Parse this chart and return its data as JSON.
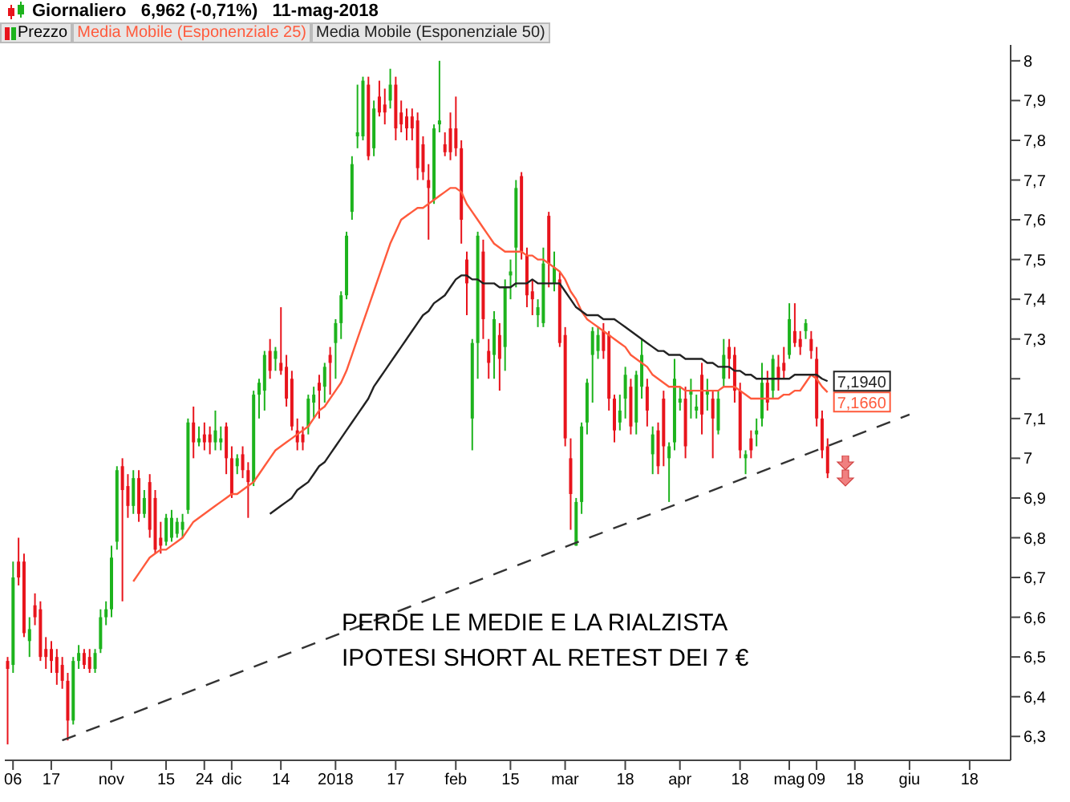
{
  "chart_data": {
    "type": "candlestick",
    "title": "Giornaliero   6,962 (-0,71%)   11-mag-2018",
    "categories": [
      null,
      "06",
      null,
      null,
      null,
      null,
      null,
      null,
      "17",
      null,
      null,
      null,
      null,
      null,
      null,
      null,
      null,
      null,
      null,
      "nov",
      null,
      null,
      null,
      null,
      null,
      null,
      null,
      null,
      null,
      "15",
      null,
      null,
      null,
      null,
      null,
      null,
      "24",
      null,
      null,
      null,
      null,
      "dic",
      null,
      null,
      null,
      null,
      null,
      null,
      null,
      null,
      "14",
      null,
      null,
      null,
      null,
      null,
      null,
      null,
      null,
      null,
      "2018",
      null,
      null,
      null,
      null,
      null,
      null,
      null,
      null,
      null,
      null,
      "17",
      null,
      null,
      null,
      null,
      null,
      null,
      null,
      null,
      null,
      null,
      "feb",
      null,
      null,
      null,
      null,
      null,
      null,
      null,
      null,
      null,
      "15",
      null,
      null,
      null,
      null,
      null,
      null,
      null,
      null,
      null,
      "mar",
      null,
      null,
      null,
      null,
      null,
      null,
      null,
      null,
      null,
      null,
      "18",
      null,
      null,
      null,
      null,
      null,
      null,
      null,
      null,
      null,
      "apr",
      null,
      null,
      null,
      null,
      null,
      null,
      null,
      null,
      null,
      null,
      "18",
      null,
      null,
      null,
      null,
      null,
      null,
      null,
      null,
      "mag",
      null,
      null,
      null,
      null,
      "09",
      null,
      null,
      null,
      null,
      null,
      null,
      "18",
      null,
      null,
      null,
      null,
      null,
      null,
      null,
      null,
      null,
      "giu",
      null,
      null,
      null,
      null,
      null,
      null,
      null,
      null,
      null,
      null,
      "18",
      null,
      null,
      null,
      null,
      null,
      null,
      null
    ],
    "series": [
      {
        "name": "Prezzo",
        "type": "candlestick",
        "ohlc": [
          [
            6.49,
            6.5,
            6.28,
            6.47
          ],
          [
            6.48,
            6.74,
            6.46,
            6.7
          ],
          [
            6.74,
            6.8,
            6.68,
            6.7
          ],
          [
            6.74,
            6.76,
            6.55,
            6.56
          ],
          [
            6.54,
            6.6,
            6.5,
            6.57
          ],
          [
            6.63,
            6.66,
            6.58,
            6.6
          ],
          [
            6.62,
            6.64,
            6.49,
            6.5
          ],
          [
            6.52,
            6.55,
            6.47,
            6.5
          ],
          [
            6.52,
            6.54,
            6.46,
            6.49
          ],
          [
            6.5,
            6.52,
            6.43,
            6.46
          ],
          [
            6.48,
            6.5,
            6.42,
            6.44
          ],
          [
            6.44,
            6.46,
            6.29,
            6.34
          ],
          [
            6.34,
            6.5,
            6.33,
            6.49
          ],
          [
            6.49,
            6.53,
            6.47,
            6.51
          ],
          [
            6.51,
            6.52,
            6.47,
            6.48
          ],
          [
            6.5,
            6.52,
            6.46,
            6.47
          ],
          [
            6.47,
            6.52,
            6.46,
            6.51
          ],
          [
            6.52,
            6.62,
            6.51,
            6.6
          ],
          [
            6.6,
            6.64,
            6.58,
            6.62
          ],
          [
            6.62,
            6.78,
            6.6,
            6.75
          ],
          [
            6.79,
            6.98,
            6.77,
            6.97
          ],
          [
            6.98,
            7.0,
            6.64,
            6.92
          ],
          [
            6.93,
            6.96,
            6.85,
            6.88
          ],
          [
            6.88,
            6.97,
            6.86,
            6.95
          ],
          [
            6.95,
            6.97,
            6.84,
            6.86
          ],
          [
            6.86,
            6.92,
            6.85,
            6.9
          ],
          [
            6.94,
            6.96,
            6.8,
            6.82
          ],
          [
            6.9,
            6.92,
            6.76,
            6.77
          ],
          [
            6.8,
            6.84,
            6.76,
            6.78
          ],
          [
            6.79,
            6.86,
            6.78,
            6.85
          ],
          [
            6.8,
            6.87,
            6.79,
            6.85
          ],
          [
            6.81,
            6.85,
            6.8,
            6.84
          ],
          [
            6.82,
            6.86,
            6.8,
            6.84
          ],
          [
            6.87,
            7.1,
            6.86,
            7.09
          ],
          [
            7.09,
            7.13,
            7.0,
            7.04
          ],
          [
            7.04,
            7.08,
            7.03,
            7.05
          ],
          [
            7.06,
            7.09,
            7.02,
            7.04
          ],
          [
            7.06,
            7.08,
            7.01,
            7.04
          ],
          [
            7.04,
            7.12,
            7.02,
            7.07
          ],
          [
            7.04,
            7.08,
            7.02,
            7.05
          ],
          [
            7.08,
            7.09,
            6.96,
            7.0
          ],
          [
            7.0,
            7.03,
            6.9,
            6.91
          ],
          [
            6.98,
            7.01,
            6.96,
            7.0
          ],
          [
            7.01,
            7.03,
            6.95,
            6.97
          ],
          [
            6.97,
            6.99,
            6.85,
            6.94
          ],
          [
            6.94,
            7.17,
            6.93,
            7.16
          ],
          [
            7.16,
            7.2,
            7.1,
            7.19
          ],
          [
            7.17,
            7.27,
            7.12,
            7.26
          ],
          [
            7.27,
            7.3,
            7.2,
            7.22
          ],
          [
            7.25,
            7.28,
            7.22,
            7.27
          ],
          [
            7.24,
            7.38,
            7.21,
            7.22
          ],
          [
            7.23,
            7.26,
            7.13,
            7.15
          ],
          [
            7.2,
            7.22,
            7.07,
            7.08
          ],
          [
            7.07,
            7.1,
            7.02,
            7.04
          ],
          [
            7.06,
            7.08,
            7.02,
            7.04
          ],
          [
            7.08,
            7.16,
            7.06,
            7.15
          ],
          [
            7.14,
            7.18,
            7.1,
            7.16
          ],
          [
            7.19,
            7.21,
            7.1,
            7.17
          ],
          [
            7.18,
            7.24,
            7.14,
            7.23
          ],
          [
            7.26,
            7.28,
            7.16,
            7.24
          ],
          [
            7.29,
            7.35,
            7.2,
            7.34
          ],
          [
            7.34,
            7.42,
            7.3,
            7.41
          ],
          [
            7.41,
            7.57,
            7.4,
            7.56
          ],
          [
            7.62,
            7.76,
            7.6,
            7.74
          ],
          [
            7.81,
            7.94,
            7.78,
            7.82
          ],
          [
            7.81,
            7.96,
            7.8,
            7.95
          ],
          [
            7.94,
            7.96,
            7.75,
            7.76
          ],
          [
            7.78,
            7.9,
            7.76,
            7.88
          ],
          [
            7.91,
            7.95,
            7.86,
            7.87
          ],
          [
            7.89,
            7.93,
            7.84,
            7.87
          ],
          [
            7.9,
            7.98,
            7.88,
            7.94
          ],
          [
            7.94,
            7.96,
            7.8,
            7.83
          ],
          [
            7.87,
            7.9,
            7.82,
            7.84
          ],
          [
            7.86,
            7.88,
            7.8,
            7.83
          ],
          [
            7.86,
            7.88,
            7.8,
            7.83
          ],
          [
            7.85,
            7.87,
            7.7,
            7.73
          ],
          [
            7.79,
            7.81,
            7.7,
            7.72
          ],
          [
            7.7,
            7.74,
            7.55,
            7.68
          ],
          [
            7.65,
            7.84,
            7.64,
            7.83
          ],
          [
            7.84,
            8.0,
            7.82,
            7.85
          ],
          [
            7.79,
            7.82,
            7.76,
            7.77
          ],
          [
            7.83,
            7.87,
            7.75,
            7.77
          ],
          [
            7.83,
            7.91,
            7.76,
            7.78
          ],
          [
            7.78,
            7.8,
            7.54,
            7.6
          ],
          [
            7.5,
            7.52,
            7.36,
            7.44
          ],
          [
            7.1,
            7.3,
            7.02,
            7.29
          ],
          [
            7.29,
            7.57,
            7.2,
            7.56
          ],
          [
            7.52,
            7.55,
            7.3,
            7.35
          ],
          [
            7.27,
            7.3,
            7.2,
            7.24
          ],
          [
            7.26,
            7.37,
            7.2,
            7.35
          ],
          [
            7.31,
            7.34,
            7.17,
            7.25
          ],
          [
            7.28,
            7.45,
            7.22,
            7.43
          ],
          [
            7.46,
            7.5,
            7.4,
            7.47
          ],
          [
            7.53,
            7.7,
            7.43,
            7.68
          ],
          [
            7.71,
            7.72,
            7.5,
            7.52
          ],
          [
            7.51,
            7.53,
            7.38,
            7.41
          ],
          [
            7.42,
            7.45,
            7.36,
            7.4
          ],
          [
            7.36,
            7.4,
            7.33,
            7.38
          ],
          [
            7.34,
            7.53,
            7.33,
            7.49
          ],
          [
            7.61,
            7.62,
            7.43,
            7.49
          ],
          [
            7.44,
            7.52,
            7.42,
            7.48
          ],
          [
            7.45,
            7.47,
            7.28,
            7.29
          ],
          [
            7.31,
            7.33,
            7.03,
            7.05
          ],
          [
            7.0,
            7.05,
            6.82,
            6.91
          ],
          [
            6.78,
            6.9,
            6.78,
            6.89
          ],
          [
            6.89,
            7.09,
            6.86,
            7.08
          ],
          [
            7.09,
            7.2,
            7.06,
            7.19
          ],
          [
            7.26,
            7.33,
            7.14,
            7.32
          ],
          [
            7.27,
            7.33,
            7.25,
            7.31
          ],
          [
            7.32,
            7.34,
            7.25,
            7.27
          ],
          [
            7.31,
            7.32,
            7.12,
            7.15
          ],
          [
            7.15,
            7.16,
            7.04,
            7.07
          ],
          [
            7.09,
            7.16,
            7.07,
            7.12
          ],
          [
            7.15,
            7.23,
            7.1,
            7.21
          ],
          [
            7.18,
            7.2,
            7.06,
            7.08
          ],
          [
            7.09,
            7.22,
            7.06,
            7.21
          ],
          [
            7.18,
            7.3,
            7.15,
            7.26
          ],
          [
            7.18,
            7.2,
            7.08,
            7.12
          ],
          [
            7.01,
            7.08,
            6.96,
            7.06
          ],
          [
            7.07,
            7.09,
            6.96,
            6.98
          ],
          [
            7.15,
            7.17,
            6.98,
            7.03
          ],
          [
            7.0,
            7.04,
            6.89,
            7.03
          ],
          [
            7.04,
            7.25,
            7.02,
            7.2
          ],
          [
            7.14,
            7.18,
            7.12,
            7.15
          ],
          [
            7.15,
            7.18,
            7.0,
            7.03
          ],
          [
            7.16,
            7.2,
            7.1,
            7.17
          ],
          [
            7.12,
            7.16,
            7.1,
            7.13
          ],
          [
            7.21,
            7.24,
            7.06,
            7.11
          ],
          [
            7.16,
            7.2,
            7.12,
            7.17
          ],
          [
            7.15,
            7.17,
            7.0,
            7.1
          ],
          [
            7.07,
            7.17,
            7.06,
            7.15
          ],
          [
            7.2,
            7.3,
            7.18,
            7.26
          ],
          [
            7.28,
            7.3,
            7.2,
            7.25
          ],
          [
            7.26,
            7.28,
            7.14,
            7.17
          ],
          [
            7.17,
            7.19,
            7.0,
            7.02
          ],
          [
            7.0,
            7.02,
            6.96,
            7.01
          ],
          [
            7.05,
            7.07,
            7.0,
            7.02
          ],
          [
            7.06,
            7.1,
            7.03,
            7.07
          ],
          [
            7.1,
            7.24,
            7.08,
            7.19
          ],
          [
            7.19,
            7.22,
            7.12,
            7.14
          ],
          [
            7.17,
            7.26,
            7.15,
            7.25
          ],
          [
            7.23,
            7.26,
            7.17,
            7.2
          ],
          [
            7.24,
            7.28,
            7.2,
            7.22
          ],
          [
            7.26,
            7.39,
            7.25,
            7.35
          ],
          [
            7.32,
            7.39,
            7.28,
            7.29
          ],
          [
            7.3,
            7.32,
            7.26,
            7.28
          ],
          [
            7.32,
            7.35,
            7.3,
            7.34
          ],
          [
            7.3,
            7.32,
            7.25,
            7.27
          ],
          [
            7.25,
            7.28,
            7.08,
            7.1
          ],
          [
            7.1,
            7.12,
            7.0,
            7.02
          ],
          [
            7.03,
            7.05,
            6.95,
            6.962
          ],
          null,
          null,
          null,
          null,
          null,
          null,
          null,
          null,
          null,
          null,
          null,
          null,
          null,
          null,
          null,
          null,
          null,
          null,
          null,
          null,
          null,
          null,
          null,
          null,
          null,
          null,
          null,
          null,
          null,
          null,
          null,
          null,
          null
        ],
        "colors": [
          "#e8141c",
          "#1db31d",
          "#e8141c",
          "#e8141c",
          "#1db31d",
          "#e8141c",
          "#e8141c",
          "#e8141c",
          "#e8141c",
          "#e8141c",
          "#e8141c",
          "#e8141c",
          "#1db31d",
          "#1db31d",
          "#e8141c",
          "#e8141c",
          "#1db31d",
          "#1db31d",
          "#1db31d",
          "#1db31d",
          "#1db31d",
          "#e8141c",
          "#e8141c",
          "#1db31d",
          "#e8141c",
          "#1db31d",
          "#e8141c",
          "#e8141c",
          "#e8141c",
          "#1db31d",
          "#1db31d",
          "#1db31d",
          "#1db31d",
          "#1db31d",
          "#e8141c",
          "#1db31d",
          "#e8141c",
          "#e8141c",
          "#1db31d",
          "#1db31d",
          "#e8141c",
          "#e8141c",
          "#1db31d",
          "#e8141c",
          "#e8141c",
          "#1db31d",
          "#1db31d",
          "#1db31d",
          "#e8141c",
          "#1db31d",
          "#e8141c",
          "#e8141c",
          "#e8141c",
          "#e8141c",
          "#e8141c",
          "#1db31d",
          "#1db31d",
          "#e8141c",
          "#1db31d",
          "#e8141c",
          "#1db31d",
          "#1db31d",
          "#1db31d",
          "#1db31d",
          "#1db31d",
          "#1db31d",
          "#e8141c",
          "#1db31d",
          "#e8141c",
          "#e8141c",
          "#1db31d",
          "#e8141c",
          "#e8141c",
          "#e8141c",
          "#e8141c",
          "#e8141c",
          "#e8141c",
          "#e8141c",
          "#1db31d",
          "#1db31d",
          "#e8141c",
          "#e8141c",
          "#e8141c",
          "#e8141c",
          "#e8141c",
          "#1db31d",
          "#1db31d",
          "#e8141c",
          "#e8141c",
          "#1db31d",
          "#e8141c",
          "#1db31d",
          "#1db31d",
          "#1db31d",
          "#e8141c",
          "#e8141c",
          "#e8141c",
          "#1db31d",
          "#1db31d",
          "#e8141c",
          "#1db31d",
          "#e8141c",
          "#e8141c",
          "#e8141c",
          "#1db31d",
          "#1db31d",
          "#1db31d",
          "#1db31d",
          "#1db31d",
          "#e8141c",
          "#e8141c",
          "#e8141c",
          "#1db31d",
          "#1db31d",
          "#e8141c",
          "#1db31d",
          "#1db31d",
          "#e8141c",
          "#1db31d",
          "#e8141c",
          "#e8141c",
          "#1db31d",
          "#1db31d",
          "#1db31d",
          "#e8141c",
          "#1db31d",
          "#1db31d",
          "#e8141c",
          "#1db31d",
          "#e8141c",
          "#1db31d",
          "#1db31d",
          "#e8141c",
          "#e8141c",
          "#e8141c",
          "#1db31d",
          "#e8141c",
          "#1db31d",
          "#1db31d",
          "#e8141c",
          "#1db31d",
          "#e8141c",
          "#e8141c",
          "#1db31d",
          "#e8141c",
          "#e8141c",
          "#1db31d",
          "#e8141c",
          "#e8141c",
          "#e8141c",
          "#e8141c",
          null,
          null,
          null,
          null,
          null,
          null,
          null,
          null,
          null,
          null,
          null,
          null,
          null,
          null,
          null,
          null,
          null,
          null,
          null,
          null,
          null,
          null,
          null,
          null,
          null,
          null,
          null,
          null,
          null,
          null,
          null,
          null,
          null
        ]
      },
      {
        "name": "Media Mobile (Esponenziale 25)",
        "type": "line",
        "color": "#ff5a3c",
        "values": [
          null,
          null,
          null,
          null,
          null,
          null,
          null,
          null,
          null,
          null,
          null,
          null,
          null,
          null,
          null,
          null,
          null,
          null,
          null,
          null,
          null,
          null,
          null,
          6.69,
          6.71,
          6.73,
          6.75,
          6.76,
          6.77,
          6.77,
          6.78,
          6.79,
          6.8,
          6.82,
          6.84,
          6.85,
          6.86,
          6.87,
          6.88,
          6.89,
          6.9,
          6.91,
          6.91,
          6.92,
          6.93,
          6.94,
          6.96,
          6.98,
          7.0,
          7.02,
          7.03,
          7.04,
          7.05,
          7.06,
          7.07,
          7.08,
          7.1,
          7.12,
          7.13,
          7.15,
          7.17,
          7.19,
          7.22,
          7.26,
          7.3,
          7.34,
          7.38,
          7.42,
          7.46,
          7.5,
          7.54,
          7.57,
          7.6,
          7.61,
          7.62,
          7.63,
          7.63,
          7.64,
          7.65,
          7.66,
          7.67,
          7.68,
          7.68,
          7.67,
          7.64,
          7.62,
          7.6,
          7.58,
          7.56,
          7.54,
          7.53,
          7.52,
          7.52,
          7.52,
          7.52,
          7.51,
          7.51,
          7.5,
          7.5,
          7.49,
          7.48,
          7.47,
          7.45,
          7.42,
          7.4,
          7.37,
          7.35,
          7.34,
          7.33,
          7.32,
          7.31,
          7.3,
          7.29,
          7.28,
          7.26,
          7.25,
          7.24,
          7.23,
          7.21,
          7.2,
          7.19,
          7.18,
          7.18,
          7.18,
          7.17,
          7.17,
          7.17,
          7.17,
          7.17,
          7.17,
          7.17,
          7.18,
          7.18,
          7.18,
          7.17,
          7.16,
          7.15,
          7.15,
          7.15,
          7.15,
          7.15,
          7.15,
          7.16,
          7.16,
          7.17,
          7.17,
          7.19,
          7.21,
          7.2,
          7.18,
          7.166,
          null,
          null,
          null,
          null,
          null,
          null,
          null,
          null,
          null,
          null,
          null,
          null,
          null,
          null,
          null,
          null,
          null,
          null,
          null,
          null,
          null,
          null,
          null,
          null,
          null,
          null,
          null,
          null,
          null,
          null,
          null,
          null,
          null
        ],
        "value_labels": [
          null,
          null,
          null,
          null,
          null,
          null,
          null,
          null,
          null,
          null,
          null,
          null,
          null,
          null,
          null,
          null,
          null,
          null,
          null,
          null,
          null,
          null,
          null,
          null,
          null,
          null,
          null,
          null,
          null,
          null,
          null,
          null,
          null,
          null,
          null,
          null,
          null,
          null,
          null,
          null,
          null,
          null,
          null,
          null,
          null,
          null,
          null,
          null,
          null,
          null,
          null,
          null,
          null,
          null,
          null,
          null,
          null,
          null,
          null,
          null,
          null,
          null,
          null,
          null,
          null,
          null,
          null,
          null,
          null,
          null,
          null,
          null,
          null,
          null,
          null,
          null,
          null,
          null,
          null,
          null,
          null,
          null,
          null,
          null,
          null,
          null,
          null,
          null,
          null,
          null,
          null,
          null,
          null,
          null,
          null,
          null,
          null,
          null,
          null,
          null,
          null,
          null,
          null,
          null,
          null,
          null,
          null,
          null,
          null,
          null,
          null,
          null,
          null,
          null,
          null,
          null,
          null,
          null,
          null,
          null,
          null,
          null,
          null,
          null,
          null,
          null,
          null,
          null,
          null,
          null,
          null,
          null,
          null,
          null,
          null,
          null,
          null,
          null,
          null,
          null,
          null,
          null,
          null,
          null,
          null,
          null,
          null,
          null,
          null,
          null,
          "7,1660",
          null,
          null,
          null,
          null,
          null,
          null,
          null,
          null,
          null,
          null,
          null,
          null,
          null,
          null,
          null,
          null,
          null,
          null,
          null,
          null,
          null,
          null,
          null,
          null,
          null,
          null,
          null,
          null,
          null,
          null,
          null,
          null,
          null
        ]
      },
      {
        "name": "Media Mobile (Esponenziale 50)",
        "type": "line",
        "color": "#222222",
        "values": [
          null,
          null,
          null,
          null,
          null,
          null,
          null,
          null,
          null,
          null,
          null,
          null,
          null,
          null,
          null,
          null,
          null,
          null,
          null,
          null,
          null,
          null,
          null,
          null,
          null,
          null,
          null,
          null,
          null,
          null,
          null,
          null,
          null,
          null,
          null,
          null,
          null,
          null,
          null,
          null,
          null,
          null,
          null,
          null,
          null,
          null,
          null,
          null,
          6.86,
          6.87,
          6.88,
          6.89,
          6.9,
          6.92,
          6.93,
          6.94,
          6.96,
          6.98,
          6.99,
          7.01,
          7.03,
          7.05,
          7.07,
          7.09,
          7.11,
          7.13,
          7.15,
          7.18,
          7.2,
          7.22,
          7.24,
          7.26,
          7.28,
          7.3,
          7.32,
          7.34,
          7.36,
          7.37,
          7.39,
          7.4,
          7.41,
          7.43,
          7.45,
          7.46,
          7.46,
          7.45,
          7.45,
          7.44,
          7.44,
          7.44,
          7.43,
          7.43,
          7.43,
          7.44,
          7.44,
          7.44,
          7.45,
          7.44,
          7.44,
          7.44,
          7.44,
          7.44,
          7.42,
          7.4,
          7.38,
          7.37,
          7.36,
          7.36,
          7.36,
          7.35,
          7.35,
          7.35,
          7.34,
          7.33,
          7.32,
          7.31,
          7.3,
          7.29,
          7.28,
          7.27,
          7.27,
          7.26,
          7.26,
          7.26,
          7.25,
          7.25,
          7.25,
          7.25,
          7.24,
          7.24,
          7.23,
          7.23,
          7.23,
          7.22,
          7.22,
          7.21,
          7.21,
          7.2,
          7.2,
          7.2,
          7.2,
          7.2,
          7.2,
          7.2,
          7.21,
          7.21,
          7.21,
          7.21,
          7.21,
          7.2,
          7.194,
          null,
          null,
          null,
          null,
          null,
          null,
          null,
          null,
          null,
          null,
          null,
          null,
          null,
          null,
          null,
          null,
          null,
          null,
          null,
          null,
          null,
          null,
          null,
          null,
          null,
          null,
          null,
          null,
          null,
          null,
          null,
          null,
          null
        ],
        "value_labels": [
          null,
          null,
          null,
          null,
          null,
          null,
          null,
          null,
          null,
          null,
          null,
          null,
          null,
          null,
          null,
          null,
          null,
          null,
          null,
          null,
          null,
          null,
          null,
          null,
          null,
          null,
          null,
          null,
          null,
          null,
          null,
          null,
          null,
          null,
          null,
          null,
          null,
          null,
          null,
          null,
          null,
          null,
          null,
          null,
          null,
          null,
          null,
          null,
          null,
          null,
          null,
          null,
          null,
          null,
          null,
          null,
          null,
          null,
          null,
          null,
          null,
          null,
          null,
          null,
          null,
          null,
          null,
          null,
          null,
          null,
          null,
          null,
          null,
          null,
          null,
          null,
          null,
          null,
          null,
          null,
          null,
          null,
          null,
          null,
          null,
          null,
          null,
          null,
          null,
          null,
          null,
          null,
          null,
          null,
          null,
          null,
          null,
          null,
          null,
          null,
          null,
          null,
          null,
          null,
          null,
          null,
          null,
          null,
          null,
          null,
          null,
          null,
          null,
          null,
          null,
          null,
          null,
          null,
          null,
          null,
          null,
          null,
          null,
          null,
          null,
          null,
          null,
          null,
          null,
          null,
          null,
          null,
          null,
          null,
          null,
          null,
          null,
          null,
          null,
          null,
          null,
          null,
          null,
          null,
          null,
          null,
          null,
          null,
          null,
          null,
          "7,1940",
          null,
          null,
          null,
          null,
          null,
          null,
          null,
          null,
          null,
          null,
          null,
          null,
          null,
          null,
          null,
          null,
          null,
          null,
          null,
          null,
          null,
          null,
          null,
          null,
          null,
          null,
          null,
          null,
          null,
          null,
          null,
          null,
          null
        ]
      },
      {
        "type": "line",
        "color": "#333333",
        "line_style": "dashed",
        "values": [
          null,
          null,
          null,
          null,
          null,
          null,
          null,
          null,
          null,
          null,
          6.29,
          null,
          null,
          null,
          null,
          null,
          null,
          null,
          null,
          null,
          null,
          null,
          null,
          null,
          null,
          null,
          null,
          null,
          null,
          null,
          null,
          null,
          null,
          null,
          null,
          null,
          null,
          null,
          null,
          null,
          null,
          null,
          null,
          null,
          null,
          null,
          null,
          null,
          null,
          null,
          null,
          null,
          null,
          null,
          null,
          null,
          null,
          null,
          null,
          null,
          null,
          null,
          null,
          null,
          null,
          null,
          null,
          null,
          null,
          null,
          null,
          null,
          null,
          null,
          null,
          null,
          null,
          null,
          null,
          null,
          null,
          null,
          null,
          null,
          null,
          null,
          null,
          null,
          null,
          null,
          null,
          null,
          null,
          null,
          null,
          null,
          null,
          null,
          null,
          null,
          null,
          null,
          null,
          null,
          null,
          null,
          null,
          null,
          null,
          null,
          null,
          null,
          null,
          null,
          null,
          null,
          null,
          null,
          null,
          null,
          null,
          null,
          null,
          null,
          null,
          null,
          null,
          null,
          null,
          null,
          null,
          null,
          null,
          null,
          null,
          null,
          null,
          null,
          null,
          null,
          null,
          null,
          null,
          null,
          null,
          null,
          null,
          null,
          null,
          null,
          null,
          null,
          null,
          null,
          null,
          null,
          null,
          null,
          null,
          null,
          null,
          null,
          null,
          null,
          null,
          7.11,
          null,
          null,
          null,
          null,
          null,
          null,
          null,
          null,
          null,
          null,
          null,
          null,
          null,
          null,
          null,
          null,
          null,
          null
        ]
      }
    ],
    "ylim": [
      6.24,
      8.04
    ],
    "yticks": [
      {
        "value": 6.3,
        "label": "6,3"
      },
      {
        "value": 6.4,
        "label": "6,4"
      },
      {
        "value": 6.5,
        "label": "6,5"
      },
      {
        "value": 6.6,
        "label": "6,6"
      },
      {
        "value": 6.7,
        "label": "6,7"
      },
      {
        "value": 6.8,
        "label": "6,8"
      },
      {
        "value": 6.9,
        "label": "6,9"
      },
      7,
      {
        "value": 7.1,
        "label": "7,1"
      },
      {
        "value": 7.2,
        "label": null
      },
      {
        "value": 7.3,
        "label": "7,3"
      },
      {
        "value": 7.4,
        "label": "7,4"
      },
      {
        "value": 7.5,
        "label": "7,5"
      },
      {
        "value": 7.6,
        "label": "7,6"
      },
      {
        "value": 7.7,
        "label": "7,7"
      },
      {
        "value": 7.8,
        "label": "7,8"
      },
      {
        "value": 7.9,
        "label": "7,9"
      },
      8
    ],
    "legend": "top left",
    "marker": "none",
    "annotations": [
      "PERDE LE MEDIE E LA RIALZISTA",
      "IPOTESI SHORT AL RETEST DEI 7 €"
    ]
  }
}
